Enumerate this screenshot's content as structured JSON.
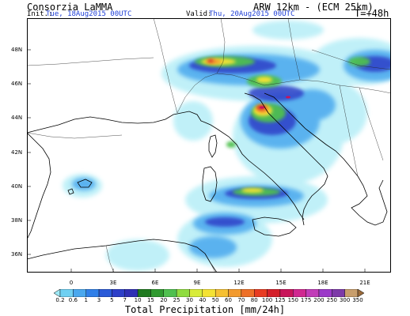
{
  "header": {
    "source": "Consorzia LaMMA",
    "model": "ARW 12km - (ECM 25km)",
    "init_label": "Init.:",
    "init_value": "Tue, 18Aug2015 00UTC",
    "valid_label": "Valid:",
    "valid_value": "Thu, 20Aug2015 00UTC",
    "lead_time": "T=+48h"
  },
  "axes": {
    "lat_ticks": [
      "48N",
      "46N",
      "44N",
      "42N",
      "40N",
      "38N",
      "36N"
    ],
    "lon_ticks": [
      "0",
      "3E",
      "6E",
      "9E",
      "12E",
      "15E",
      "18E",
      "21E"
    ]
  },
  "colorbar": {
    "title": "Total Precipitation [mm/24h]",
    "labels": [
      "0.2",
      "0.6",
      "1",
      "3",
      "5",
      "7",
      "10",
      "15",
      "20",
      "25",
      "30",
      "40",
      "50",
      "60",
      "70",
      "80",
      "100",
      "125",
      "150",
      "175",
      "200",
      "250",
      "300",
      "350"
    ],
    "colors": [
      "#9ee9f6",
      "#6fd0f2",
      "#4aa8ee",
      "#2f7fe8",
      "#2a5ad8",
      "#2d3fc8",
      "#2f2fb4",
      "#1f7a1f",
      "#2f9a2f",
      "#4fc04f",
      "#8fdc3f",
      "#d8ec3a",
      "#f4e234",
      "#f6c032",
      "#f29a2e",
      "#ee7028",
      "#e83c22",
      "#d4202a",
      "#c8145a",
      "#d02890",
      "#c13cb8",
      "#9b3ac8",
      "#7d3aa8",
      "#c89e6c",
      "#9a6a3a"
    ]
  },
  "palette": {
    "land_stroke": "#000000",
    "boundary": "#222222"
  }
}
